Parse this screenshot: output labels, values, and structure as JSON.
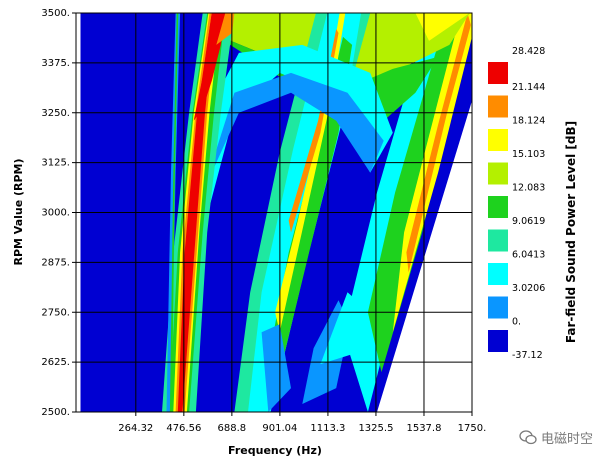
{
  "chart_data": {
    "type": "heatmap",
    "title": "",
    "xlabel": "Frequency (Hz)",
    "ylabel": "RPM Value (RPM)",
    "colorbar_label": "Far-field Sound Power Level [dB]",
    "xlim": [
      0,
      1750
    ],
    "ylim": [
      2500,
      3500
    ],
    "x_ticks": [
      264.32,
      476.56,
      688.8,
      901.04,
      1113.3,
      1325.5,
      1537.8,
      1750
    ],
    "x_tick_labels": [
      "264.32",
      "476.56",
      "688.8",
      "901.04",
      "1113.3",
      "1325.5",
      "1537.8",
      "1750."
    ],
    "y_ticks": [
      2500,
      2625,
      2750,
      2875,
      3000,
      3125,
      3250,
      3375,
      3500
    ],
    "y_tick_labels": [
      "2500.",
      "2625.",
      "2750.",
      "2875.",
      "3000.",
      "3125.",
      "3250.",
      "3375.",
      "3500."
    ],
    "grid": true,
    "colorbar": {
      "levels": [
        "28.428",
        "21.144",
        "18.124",
        "15.103",
        "12.083",
        "9.0619",
        "6.0413",
        "3.0206",
        "0.",
        "-37.12"
      ],
      "colors": [
        "#ee0000",
        "#ff8c00",
        "#ffff00",
        "#b4f000",
        "#1ed21e",
        "#1ee8a0",
        "#00ffff",
        "#0a96ff",
        "#0000d2"
      ]
    },
    "orders": [
      {
        "desc": "dominant order, red ridge",
        "freq_at_2500": 455,
        "freq_at_3500": 580,
        "peak_db": 28.4
      },
      {
        "desc": "second order ridge",
        "freq_at_2500": 910,
        "freq_at_3500": 1160,
        "peak_db": 18.1
      },
      {
        "desc": "third order ridge",
        "freq_at_2500": 1365,
        "freq_at_3500": 1740,
        "peak_db": 12.1
      }
    ]
  },
  "watermark": {
    "text": "电磁时空",
    "icon": "wechat-icon"
  }
}
